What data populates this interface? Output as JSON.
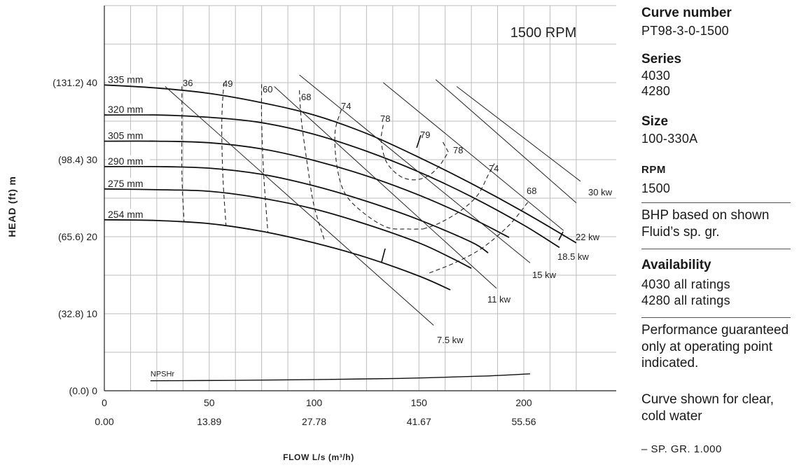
{
  "chart_data": {
    "type": "line",
    "title": "1500 RPM",
    "xlabel": "FLOW L/s (m³/h)",
    "ylabel": "HEAD (ft) m",
    "xlim": [
      0,
      230
    ],
    "ylim": [
      0,
      50
    ],
    "x_ticks": [
      0,
      50,
      100,
      150,
      200
    ],
    "x_ticks_secondary": [
      "0.00",
      "13.89",
      "27.78",
      "41.67",
      "55.56"
    ],
    "y_ticks": [
      0,
      10,
      20,
      30,
      40
    ],
    "y_tick_labels": [
      "(0.0) 0",
      "(32.8) 10",
      "(65.6) 20",
      "(98.4) 30",
      "(131.2) 40"
    ],
    "grid": true,
    "series": [
      {
        "name": "335 mm",
        "x": [
          0,
          25,
          50,
          75,
          100,
          125,
          150,
          175,
          200,
          225
        ],
        "y": [
          39.7,
          39.3,
          38.6,
          37.4,
          35.8,
          33.4,
          30.3,
          26.9,
          23.2,
          19.2
        ]
      },
      {
        "name": "320 mm",
        "x": [
          0,
          25,
          50,
          75,
          100,
          125,
          150,
          175,
          200,
          217
        ],
        "y": [
          35.8,
          35.8,
          35.5,
          34.8,
          33.3,
          31.1,
          28.4,
          25.2,
          21.5,
          18.6
        ]
      },
      {
        "name": "305 mm",
        "x": [
          0,
          25,
          50,
          75,
          100,
          125,
          150,
          175,
          193
        ],
        "y": [
          32.4,
          32.4,
          32.2,
          31.4,
          29.9,
          27.9,
          25.4,
          22.4,
          19.9
        ]
      },
      {
        "name": "290 mm",
        "x": [
          0,
          25,
          50,
          75,
          100,
          125,
          150,
          175,
          183
        ],
        "y": [
          29.1,
          29.1,
          28.9,
          28.1,
          26.6,
          24.6,
          22.2,
          19.3,
          17.9
        ]
      },
      {
        "name": "275 mm",
        "x": [
          0,
          25,
          50,
          75,
          100,
          125,
          150,
          165,
          175
        ],
        "y": [
          26.2,
          26.1,
          25.9,
          25.0,
          23.6,
          21.6,
          19.2,
          17.3,
          15.9
        ]
      },
      {
        "name": "254 mm",
        "x": [
          0,
          25,
          50,
          75,
          100,
          125,
          150,
          165
        ],
        "y": [
          22.2,
          22.1,
          21.7,
          20.7,
          19.2,
          17.3,
          14.9,
          13.1
        ]
      },
      {
        "name": "NPSHr",
        "x": [
          22,
          60,
          100,
          140,
          180,
          203
        ],
        "y": [
          1.3,
          1.35,
          1.45,
          1.6,
          1.9,
          2.2
        ]
      }
    ],
    "efficiency_contours": [
      {
        "label": "36",
        "x": [
          37,
          37,
          37,
          38
        ],
        "y": [
          39.5,
          35.5,
          28,
          22
        ]
      },
      {
        "label": "49",
        "x": [
          57,
          56,
          56.5,
          58
        ],
        "y": [
          40,
          35,
          28,
          21.5
        ]
      },
      {
        "label": "60",
        "x": [
          75,
          75,
          76,
          78
        ],
        "y": [
          39.8,
          35,
          28,
          20.5
        ]
      },
      {
        "label": "68",
        "x": [
          93,
          94,
          97,
          100,
          105
        ],
        "y": [
          39,
          35,
          29,
          24,
          19.5
        ]
      },
      {
        "label": "74",
        "x": [
          113,
          110,
          111,
          115,
          124,
          135,
          145,
          152
        ],
        "y": [
          36.5,
          33.5,
          29,
          25.5,
          23,
          21.2,
          21,
          21
        ]
      },
      {
        "label": "78",
        "x": [
          133,
          132,
          134,
          138,
          143,
          149,
          155,
          160,
          164
        ],
        "y": [
          34.5,
          32.5,
          30,
          28.5,
          27.6,
          27.4,
          28,
          29.3,
          31
        ]
      },
      {
        "label": "78",
        "x": [
          164,
          161
        ],
        "y": [
          31,
          32.5
        ]
      },
      {
        "label": "74",
        "x": [
          152,
          160,
          170,
          178,
          183,
          186
        ],
        "y": [
          21,
          21.8,
          23.4,
          25.4,
          28,
          29.5
        ]
      },
      {
        "label": "68",
        "x": [
          155,
          167,
          180,
          193,
          202
        ],
        "y": [
          15.3,
          16.6,
          18.5,
          21.5,
          24.5
        ]
      }
    ],
    "power_lines": [
      {
        "label": "7.5 kw",
        "x": [
          29,
          157
        ],
        "y": [
          39.5,
          8.5
        ]
      },
      {
        "label": "11 kw",
        "x": [
          81,
          187
        ],
        "y": [
          39.5,
          13.3
        ]
      },
      {
        "label": "15 kw",
        "x": [
          93,
          203
        ],
        "y": [
          41,
          16.6
        ]
      },
      {
        "label": "18.5 kw",
        "x": [
          133,
          219
        ],
        "y": [
          40,
          20.8
        ]
      },
      {
        "label": "22 kw",
        "x": [
          158,
          225
        ],
        "y": [
          40.4,
          24.4
        ]
      },
      {
        "label": "30 kw",
        "x": [
          168,
          227
        ],
        "y": [
          39.5,
          27.2
        ]
      }
    ],
    "annotations": [
      "79",
      "NPSHr",
      "30 kw",
      "22 kw",
      "18.5 kw",
      "15 kw",
      "11 kw",
      "7.5 kw"
    ]
  },
  "side": {
    "curve_number_label": "Curve number",
    "curve_number_value": "PT98-3-0-1500",
    "series_label": "Series",
    "series_values": [
      "4030",
      "4280"
    ],
    "size_label": "Size",
    "size_value": "100-330A",
    "rpm_label": "RPM",
    "rpm_value": "1500",
    "bhp_note": "BHP based on shown Fluid’s sp. gr.",
    "availability_label": "Availability",
    "availability_values": [
      "4030 all ratings",
      "4280  all ratings"
    ],
    "performance_note": "Performance guaranteed only at operating point indicated.",
    "curve_note": "Curve shown for clear, cold water",
    "sp_gr_note": "– SP. GR. 1.000"
  }
}
